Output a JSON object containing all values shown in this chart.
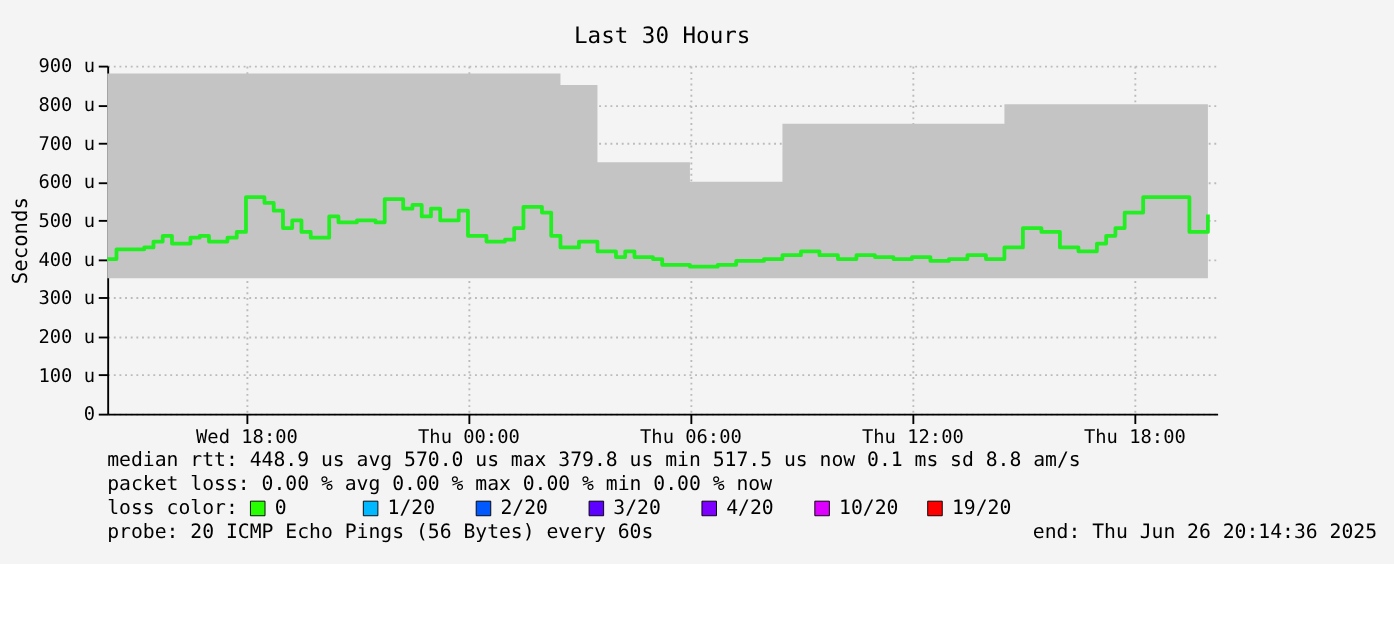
{
  "chart_data": {
    "type": "step",
    "title": "Last 30 Hours",
    "ylabel": "Seconds",
    "xlim": [
      "2025-06-25T14:15",
      "2025-06-26T20:15"
    ],
    "xticks": [
      {
        "value": "2025-06-25T18:00",
        "label": "Wed 18:00"
      },
      {
        "value": "2025-06-26T00:00",
        "label": "Thu 00:00"
      },
      {
        "value": "2025-06-26T06:00",
        "label": "Thu 06:00"
      },
      {
        "value": "2025-06-26T12:00",
        "label": "Thu 12:00"
      },
      {
        "value": "2025-06-26T18:00",
        "label": "Thu 18:00"
      }
    ],
    "ylim": [
      0,
      900
    ],
    "yticks": [
      0,
      {
        "value": 100,
        "label": "100 u"
      },
      {
        "value": 200,
        "label": "200 u"
      },
      {
        "value": 300,
        "label": "300 u"
      },
      {
        "value": 400,
        "label": "400 u"
      },
      {
        "value": 500,
        "label": "500 u"
      },
      {
        "value": 600,
        "label": "600 u"
      },
      {
        "value": 700,
        "label": "700 u"
      },
      {
        "value": 800,
        "label": "800 u"
      },
      {
        "value": 900,
        "label": "900 u"
      }
    ],
    "grid": true,
    "legend": false,
    "marker": "none",
    "line_style": "solid",
    "x": [
      "2025-06-25T14:15",
      "2025-06-25T14:30",
      "2025-06-25T15:15",
      "2025-06-25T15:30",
      "2025-06-25T15:45",
      "2025-06-25T16:00",
      "2025-06-25T16:30",
      "2025-06-25T16:45",
      "2025-06-25T17:00",
      "2025-06-25T17:30",
      "2025-06-25T17:45",
      "2025-06-25T18:00",
      "2025-06-25T18:30",
      "2025-06-25T18:45",
      "2025-06-25T19:00",
      "2025-06-25T19:15",
      "2025-06-25T19:30",
      "2025-06-25T19:45",
      "2025-06-25T20:15",
      "2025-06-25T20:30",
      "2025-06-25T21:00",
      "2025-06-25T21:30",
      "2025-06-25T21:45",
      "2025-06-25T22:15",
      "2025-06-25T22:30",
      "2025-06-25T22:45",
      "2025-06-25T23:00",
      "2025-06-25T23:15",
      "2025-06-25T23:45",
      "2025-06-26T00:00",
      "2025-06-26T00:30",
      "2025-06-26T01:00",
      "2025-06-26T01:15",
      "2025-06-26T01:30",
      "2025-06-26T02:00",
      "2025-06-26T02:15",
      "2025-06-26T02:30",
      "2025-06-26T03:00",
      "2025-06-26T03:30",
      "2025-06-26T04:00",
      "2025-06-26T04:15",
      "2025-06-26T04:30",
      "2025-06-26T05:00",
      "2025-06-26T05:15",
      "2025-06-26T06:00",
      "2025-06-26T06:45",
      "2025-06-26T07:15",
      "2025-06-26T08:00",
      "2025-06-26T08:30",
      "2025-06-26T09:00",
      "2025-06-26T09:30",
      "2025-06-26T10:00",
      "2025-06-26T10:30",
      "2025-06-26T11:00",
      "2025-06-26T11:30",
      "2025-06-26T12:00",
      "2025-06-26T12:30",
      "2025-06-26T13:00",
      "2025-06-26T13:30",
      "2025-06-26T14:00",
      "2025-06-26T14:30",
      "2025-06-26T15:00",
      "2025-06-26T15:30",
      "2025-06-26T16:00",
      "2025-06-26T16:30",
      "2025-06-26T17:00",
      "2025-06-26T17:15",
      "2025-06-26T17:30",
      "2025-06-26T17:45",
      "2025-06-26T18:15",
      "2025-06-26T19:00",
      "2025-06-26T19:30",
      "2025-06-26T20:00"
    ],
    "series": [
      {
        "color": "#22ee22",
        "values": [
          400,
          425,
          430,
          445,
          460,
          440,
          455,
          460,
          445,
          455,
          470,
          560,
          545,
          525,
          480,
          500,
          470,
          455,
          510,
          495,
          500,
          495,
          555,
          530,
          540,
          510,
          530,
          500,
          525,
          460,
          445,
          450,
          480,
          535,
          520,
          460,
          430,
          445,
          420,
          405,
          420,
          405,
          400,
          385,
          380,
          385,
          395,
          400,
          410,
          420,
          410,
          400,
          410,
          405,
          400,
          405,
          395,
          400,
          410,
          400,
          430,
          480,
          470,
          430,
          420,
          440,
          460,
          480,
          520,
          560,
          560,
          470,
          515
        ],
        "lower": [
          350,
          350,
          350,
          350,
          350,
          350,
          350,
          350,
          350,
          350,
          350,
          350,
          350,
          350,
          350,
          350,
          350,
          350,
          350,
          350,
          350,
          350,
          350,
          350,
          350,
          350,
          350,
          350,
          350,
          350,
          350,
          350,
          350,
          350,
          350,
          350,
          350,
          350,
          350,
          350,
          350,
          350,
          350,
          350,
          350,
          350,
          350,
          350,
          350,
          350,
          350,
          350,
          350,
          350,
          350,
          350,
          350,
          350,
          350,
          350,
          350,
          350,
          350,
          350,
          350,
          350,
          350,
          350,
          350,
          350,
          350,
          350,
          350
        ],
        "upper": [
          880,
          880,
          880,
          880,
          880,
          880,
          880,
          880,
          880,
          880,
          880,
          880,
          880,
          880,
          880,
          880,
          880,
          880,
          880,
          880,
          880,
          880,
          880,
          880,
          880,
          880,
          880,
          880,
          880,
          880,
          880,
          880,
          880,
          880,
          880,
          880,
          850,
          850,
          650,
          650,
          650,
          650,
          650,
          650,
          600,
          600,
          600,
          600,
          750,
          750,
          750,
          750,
          750,
          750,
          750,
          750,
          750,
          750,
          750,
          750,
          800,
          800,
          800,
          800,
          800,
          800,
          800,
          800,
          800,
          800,
          800,
          800,
          800
        ]
      }
    ],
    "annotations": [
      "median rtt:  448.9 us avg  570.0 us max  379.8 us min  517.5 us now  0.1 ms sd  8.8  am/s",
      "packet loss: 0.00 % avg  0.00 % max  0.00 % min  0.00 % now",
      "loss color:",
      "0",
      "1/20",
      "2/20",
      "3/20",
      "4/20",
      "10/20",
      "19/20",
      "probe:       20 ICMP Echo Pings (56 Bytes) every 60s",
      "end: Thu Jun 26 20:14:36 2025"
    ]
  }
}
